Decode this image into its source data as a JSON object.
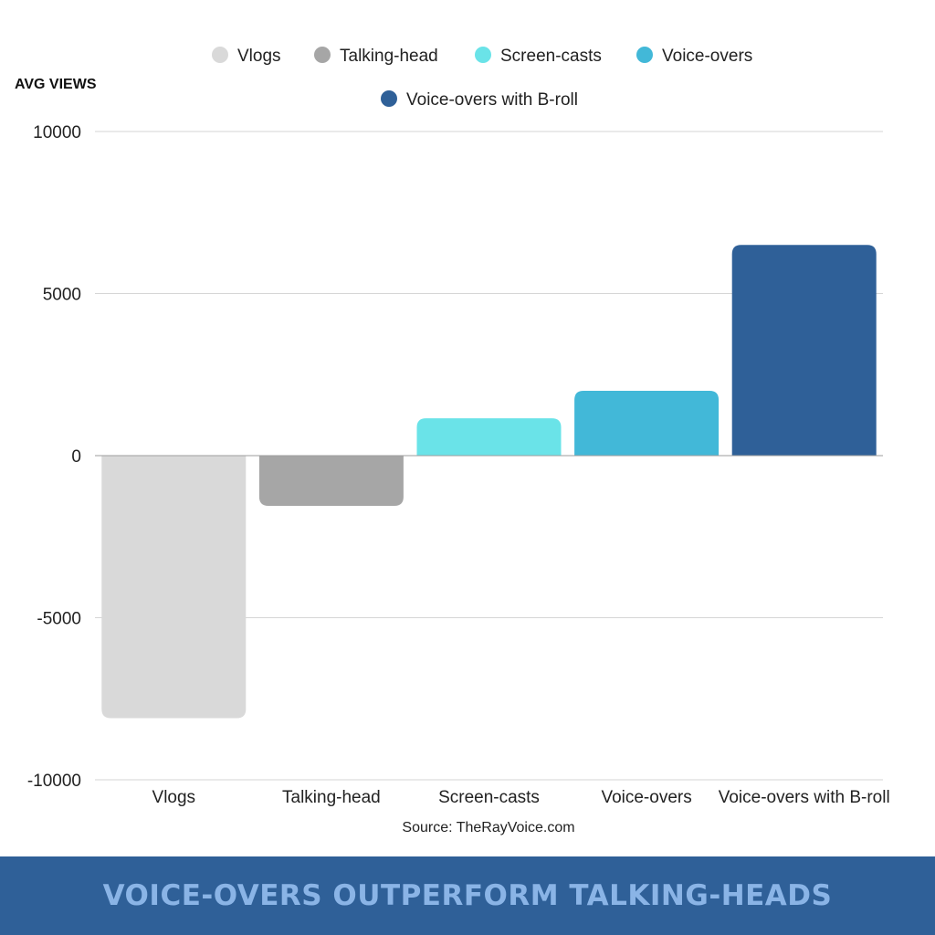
{
  "chart_data": {
    "type": "bar",
    "ylabel": "AVG VIEWS",
    "categories": [
      "Vlogs",
      "Talking-head",
      "Screen-casts",
      "Voice-overs",
      "Voice-overs with B-roll"
    ],
    "values": [
      -8100,
      -1550,
      1150,
      2000,
      6500
    ],
    "colors": [
      "#d9d9d9",
      "#a6a6a6",
      "#6ae3e8",
      "#42b8d8",
      "#2f6098"
    ],
    "ylim": [
      -10000,
      10000
    ],
    "yticks": [
      "10000",
      "5000",
      "0",
      "-5000",
      "-10000"
    ],
    "ytick_values": [
      10000,
      5000,
      0,
      -5000,
      -10000
    ],
    "grid": true,
    "legend_placement": "top-center",
    "legend": [
      {
        "label": "Vlogs",
        "color": "#d9d9d9"
      },
      {
        "label": "Talking-head",
        "color": "#a6a6a6"
      },
      {
        "label": "Screen-casts",
        "color": "#6ae3e8"
      },
      {
        "label": "Voice-overs",
        "color": "#42b8d8"
      },
      {
        "label": "Voice-overs with B-roll",
        "color": "#2f6098"
      }
    ],
    "source": "Source: TheRayVoice.com"
  },
  "footer": {
    "title": "VOICE-OVERS OUTPERFORM TALKING-HEADS"
  }
}
